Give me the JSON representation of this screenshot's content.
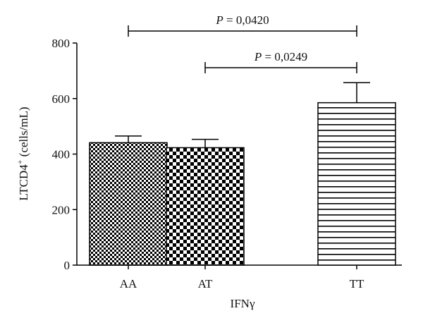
{
  "chart_data": {
    "type": "bar",
    "categories": [
      "AA",
      "AT",
      "TT"
    ],
    "values": [
      441,
      423,
      585
    ],
    "error_upper": [
      465,
      453,
      657
    ],
    "patterns": [
      "fine-checker",
      "coarse-checker",
      "horizontal-lines"
    ],
    "ylim": [
      0,
      800
    ],
    "yticks": [
      0,
      200,
      400,
      600,
      800
    ],
    "ylabel_main": "LTCD4",
    "ylabel_sup": "+",
    "ylabel_tail": " (cells/mL)",
    "xlabel_main": "IFN",
    "xlabel_greek": "γ",
    "significance": [
      {
        "from": "AA",
        "to": "TT",
        "p_symbol": "P",
        "p_value": " = 0,0420",
        "level": 0
      },
      {
        "from": "AT",
        "to": "TT",
        "p_symbol": "P",
        "p_value": " = 0,0249",
        "level": 1
      }
    ],
    "colors": {
      "bar_stroke": "#000000",
      "pattern_fg": "#000000",
      "pattern_bg": "#ffffff",
      "axis": "#000000"
    }
  }
}
